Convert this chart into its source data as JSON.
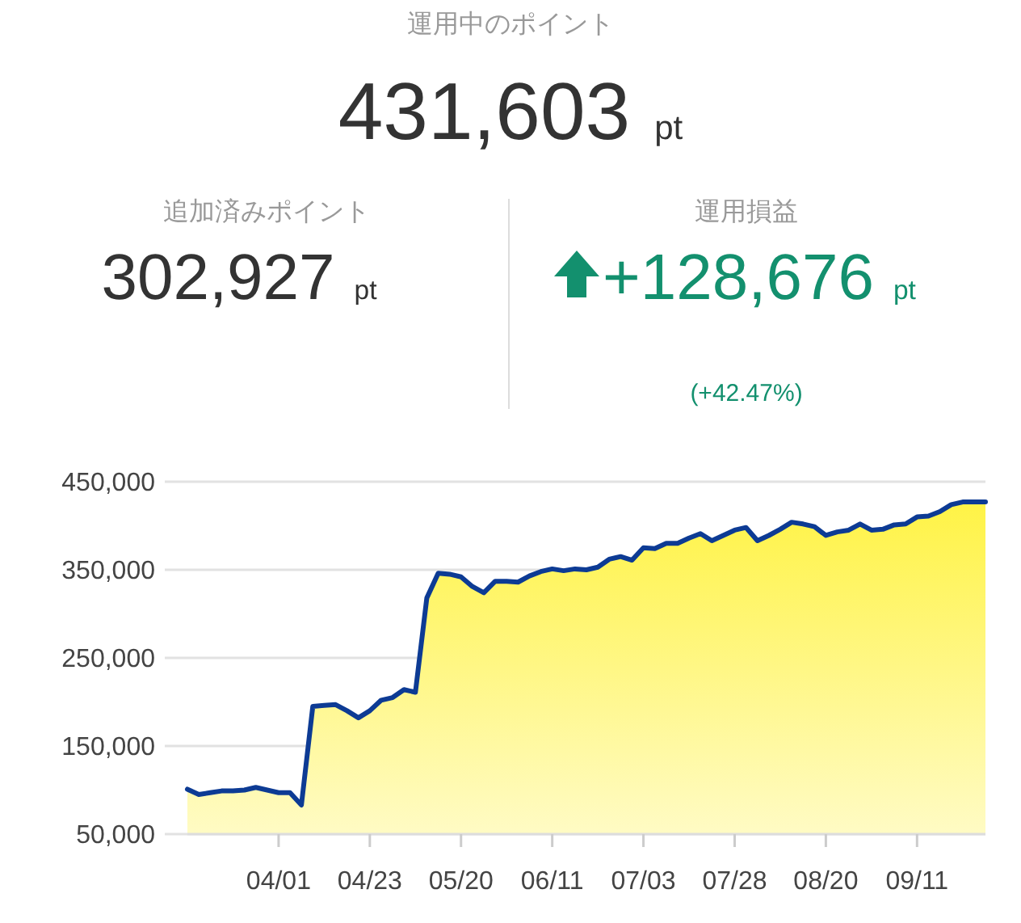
{
  "chart_data": {
    "type": "area",
    "title": "運用中のポイント",
    "subtitle": "431,603 pt",
    "annotations": [
      "追加済みポイント",
      "302,927 pt",
      "運用損益",
      "+128,676 pt",
      "(+42.47%)"
    ],
    "categories": [
      null,
      null,
      null,
      null,
      null,
      null,
      null,
      null,
      "04/01",
      null,
      null,
      null,
      null,
      null,
      null,
      null,
      "04/23",
      null,
      null,
      null,
      null,
      null,
      null,
      null,
      "05/20",
      null,
      null,
      null,
      null,
      null,
      null,
      null,
      "06/11",
      null,
      null,
      null,
      null,
      null,
      null,
      null,
      "07/03",
      null,
      null,
      null,
      null,
      null,
      null,
      null,
      "07/28",
      null,
      null,
      null,
      null,
      null,
      null,
      null,
      "08/20",
      null,
      null,
      null,
      null,
      null,
      null,
      null,
      "09/11",
      null,
      null,
      null,
      null,
      null,
      null
    ],
    "series": [
      {
        "color": "#0d3b94",
        "values": [
          101000,
          95000,
          97000,
          99000,
          99000,
          100000,
          103000,
          100000,
          97000,
          97000,
          83000,
          195000,
          196000,
          197000,
          190000,
          182000,
          190000,
          202000,
          205000,
          214000,
          211000,
          318000,
          346000,
          345000,
          342000,
          331000,
          324000,
          337000,
          337000,
          336000,
          343000,
          348000,
          351000,
          349000,
          351000,
          350000,
          353000,
          362000,
          365000,
          361000,
          375000,
          374000,
          380000,
          380000,
          386000,
          391000,
          383000,
          389000,
          395000,
          398000,
          383000,
          389000,
          396000,
          404000,
          402000,
          399000,
          389000,
          393000,
          395000,
          402000,
          395000,
          396000,
          401000,
          402000,
          410000,
          411000,
          416000,
          424000,
          427000,
          427000,
          427000
        ]
      }
    ],
    "ylim": [
      50000,
      450000
    ],
    "yticks": [
      {
        "value": 50000,
        "label": "50,000"
      },
      {
        "value": 150000,
        "label": "150,000"
      },
      {
        "value": 250000,
        "label": "250,000"
      },
      {
        "value": 350000,
        "label": "350,000"
      },
      {
        "value": 450000,
        "label": "450,000"
      }
    ],
    "grid": "y",
    "marker": "none",
    "line_style": "solid"
  }
}
